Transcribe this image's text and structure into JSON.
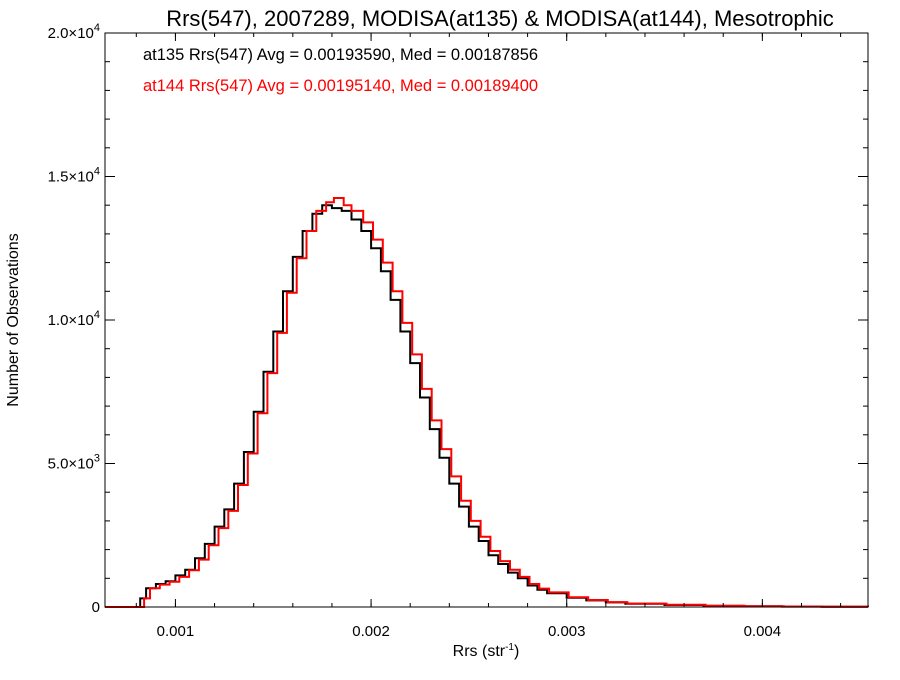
{
  "chart_data": {
    "type": "line",
    "title": "Rrs(547), 2007289, MODISA(at135) & MODISA(at144), Mesotrophic",
    "xlabel": "Rrs (str",
    "xlabel_sup": "-1",
    "xlabel_close": ")",
    "ylabel": "Number of Observations",
    "xlim": [
      0.00064,
      0.00454
    ],
    "ylim": [
      0,
      20000
    ],
    "x_ticks": [
      {
        "value": 0.001,
        "label": "0.001"
      },
      {
        "value": 0.002,
        "label": "0.002"
      },
      {
        "value": 0.003,
        "label": "0.003"
      },
      {
        "value": 0.004,
        "label": "0.004"
      }
    ],
    "y_ticks": [
      {
        "value": 0,
        "mantissa": "0",
        "exp": ""
      },
      {
        "value": 5000,
        "mantissa": "5.0×10",
        "exp": "3"
      },
      {
        "value": 10000,
        "mantissa": "1.0×10",
        "exp": "4"
      },
      {
        "value": 15000,
        "mantissa": "1.5×10",
        "exp": "4"
      },
      {
        "value": 20000,
        "mantissa": "2.0×10",
        "exp": "4"
      }
    ],
    "grid": false,
    "annotations": [
      {
        "text": "at135 Rrs(547) Avg = 0.00193590, Med = 0.00187856",
        "color": "#000000"
      },
      {
        "text": "at144 Rrs(547) Avg = 0.00195140, Med = 0.00189400",
        "color": "#ff0000"
      }
    ],
    "series": [
      {
        "color": "#000000",
        "step": true,
        "points": [
          [
            0.00064,
            0
          ],
          [
            0.00078,
            0
          ],
          [
            0.00082,
            300
          ],
          [
            0.00085,
            650
          ],
          [
            0.0009,
            800
          ],
          [
            0.00095,
            900
          ],
          [
            0.001,
            1100
          ],
          [
            0.00105,
            1300
          ],
          [
            0.0011,
            1700
          ],
          [
            0.00115,
            2200
          ],
          [
            0.0012,
            2800
          ],
          [
            0.00125,
            3400
          ],
          [
            0.0013,
            4300
          ],
          [
            0.00135,
            5400
          ],
          [
            0.0014,
            6800
          ],
          [
            0.00145,
            8200
          ],
          [
            0.0015,
            9600
          ],
          [
            0.00155,
            11000
          ],
          [
            0.0016,
            12200
          ],
          [
            0.00165,
            13100
          ],
          [
            0.0017,
            13700
          ],
          [
            0.00175,
            14000
          ],
          [
            0.0018,
            13900
          ],
          [
            0.00185,
            13800
          ],
          [
            0.0019,
            13500
          ],
          [
            0.00195,
            13100
          ],
          [
            0.002,
            12500
          ],
          [
            0.00205,
            11700
          ],
          [
            0.0021,
            10700
          ],
          [
            0.00215,
            9600
          ],
          [
            0.0022,
            8500
          ],
          [
            0.00225,
            7300
          ],
          [
            0.0023,
            6200
          ],
          [
            0.00235,
            5200
          ],
          [
            0.0024,
            4300
          ],
          [
            0.00245,
            3500
          ],
          [
            0.0025,
            2800
          ],
          [
            0.00255,
            2300
          ],
          [
            0.0026,
            1800
          ],
          [
            0.00265,
            1500
          ],
          [
            0.0027,
            1200
          ],
          [
            0.00275,
            1000
          ],
          [
            0.0028,
            750
          ],
          [
            0.00285,
            600
          ],
          [
            0.0029,
            480
          ],
          [
            0.003,
            320
          ],
          [
            0.0031,
            230
          ],
          [
            0.0032,
            160
          ],
          [
            0.0033,
            110
          ],
          [
            0.0035,
            70
          ],
          [
            0.0037,
            40
          ],
          [
            0.0039,
            25
          ],
          [
            0.0041,
            15
          ],
          [
            0.0043,
            8
          ],
          [
            0.00454,
            5
          ]
        ]
      },
      {
        "color": "#ff0000",
        "step": true,
        "points": [
          [
            0.00064,
            0
          ],
          [
            0.0008,
            0
          ],
          [
            0.00084,
            300
          ],
          [
            0.00087,
            650
          ],
          [
            0.00092,
            780
          ],
          [
            0.00097,
            880
          ],
          [
            0.00102,
            1050
          ],
          [
            0.00107,
            1280
          ],
          [
            0.00112,
            1650
          ],
          [
            0.00117,
            2150
          ],
          [
            0.00122,
            2750
          ],
          [
            0.00127,
            3350
          ],
          [
            0.00132,
            4250
          ],
          [
            0.00137,
            5350
          ],
          [
            0.00142,
            6750
          ],
          [
            0.00147,
            8150
          ],
          [
            0.00152,
            9550
          ],
          [
            0.00157,
            10950
          ],
          [
            0.00162,
            12150
          ],
          [
            0.00167,
            13100
          ],
          [
            0.00172,
            13800
          ],
          [
            0.00177,
            14100
          ],
          [
            0.00181,
            14250
          ],
          [
            0.00186,
            14000
          ],
          [
            0.0019,
            13800
          ],
          [
            0.00196,
            13400
          ],
          [
            0.00201,
            12800
          ],
          [
            0.00206,
            12000
          ],
          [
            0.00211,
            11000
          ],
          [
            0.00216,
            9900
          ],
          [
            0.00221,
            8800
          ],
          [
            0.00226,
            7600
          ],
          [
            0.00231,
            6500
          ],
          [
            0.00236,
            5500
          ],
          [
            0.00241,
            4550
          ],
          [
            0.00246,
            3700
          ],
          [
            0.00251,
            3000
          ],
          [
            0.00256,
            2450
          ],
          [
            0.00261,
            1950
          ],
          [
            0.00266,
            1600
          ],
          [
            0.00271,
            1300
          ],
          [
            0.00276,
            1050
          ],
          [
            0.00281,
            800
          ],
          [
            0.00286,
            640
          ],
          [
            0.00291,
            510
          ],
          [
            0.00301,
            340
          ],
          [
            0.00311,
            245
          ],
          [
            0.00321,
            170
          ],
          [
            0.00331,
            120
          ],
          [
            0.00351,
            75
          ],
          [
            0.00371,
            42
          ],
          [
            0.00391,
            27
          ],
          [
            0.00411,
            16
          ],
          [
            0.00431,
            9
          ],
          [
            0.00454,
            5
          ]
        ]
      }
    ]
  }
}
